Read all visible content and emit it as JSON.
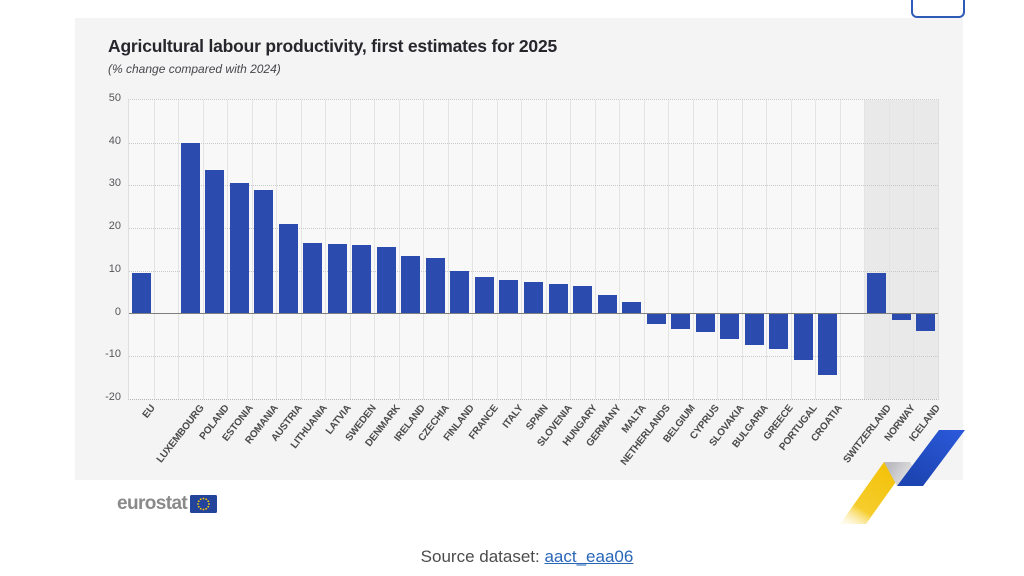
{
  "chart": {
    "title": "Agricultural labour productivity, first estimates for 2025",
    "subtitle": "(% change compared with 2024)"
  },
  "branding": {
    "logo_text": "eurostat"
  },
  "source": {
    "label": "Source dataset:",
    "link_text": "aact_eaa06"
  },
  "colors": {
    "bar": "#2b4cae",
    "highlight_background": "#e9e9e9",
    "link_blue": "#2a66b8",
    "button_border_blue": "#2e5bb8",
    "flag_blue": "#24439b",
    "flag_stars_yellow": "#ffcc00",
    "zigzag_yellow": "#f3c107",
    "zigzag_blue": "#2453cc"
  },
  "icons": {
    "eu_flag": "eu-flag-icon",
    "zigzag": "eurostat-zigzag-graphic"
  },
  "chart_data": {
    "type": "bar",
    "title": "Agricultural labour productivity, first estimates for 2025",
    "subtitle": "(% change compared with 2024)",
    "xlabel": "",
    "ylabel": "",
    "ylim": [
      -20,
      50
    ],
    "yticks": [
      50,
      40,
      30,
      20,
      10,
      0,
      -10,
      -20
    ],
    "grid": true,
    "legend": "none",
    "bar_color": "#2b4cae",
    "highlight_group": "non-eu",
    "highlight_bg": "#e9e9e9",
    "categories": [
      "EU",
      "LUXEMBOURG",
      "POLAND",
      "ESTONIA",
      "ROMANIA",
      "AUSTRIA",
      "LITHUANIA",
      "LATVIA",
      "SWEDEN",
      "DENMARK",
      "IRELAND",
      "CZECHIA",
      "FINLAND",
      "FRANCE",
      "ITALY",
      "SPAIN",
      "SLOVENIA",
      "HUNGARY",
      "GERMANY",
      "MALTA",
      "NETHERLANDS",
      "BELGIUM",
      "CYPRUS",
      "SLOVAKIA",
      "BULGARIA",
      "GREECE",
      "PORTUGAL",
      "CROATIA",
      "SWITZERLAND",
      "NORWAY",
      "ICELAND"
    ],
    "values": [
      9.5,
      40,
      33.5,
      30.5,
      29,
      21,
      16.5,
      16.3,
      16,
      15.5,
      13.5,
      13,
      10,
      8.5,
      7.8,
      7.3,
      7,
      6.5,
      4.3,
      2.8,
      -2.5,
      -3.6,
      -4.4,
      -6,
      -7.4,
      -8.4,
      -10.8,
      -14.5,
      9.4,
      -1.5,
      -4.2
    ],
    "groups": [
      "eu-aggregate",
      "eu-member",
      "eu-member",
      "eu-member",
      "eu-member",
      "eu-member",
      "eu-member",
      "eu-member",
      "eu-member",
      "eu-member",
      "eu-member",
      "eu-member",
      "eu-member",
      "eu-member",
      "eu-member",
      "eu-member",
      "eu-member",
      "eu-member",
      "eu-member",
      "eu-member",
      "eu-member",
      "eu-member",
      "eu-member",
      "eu-member",
      "eu-member",
      "eu-member",
      "eu-member",
      "eu-member",
      "non-eu",
      "non-eu",
      "non-eu"
    ]
  }
}
